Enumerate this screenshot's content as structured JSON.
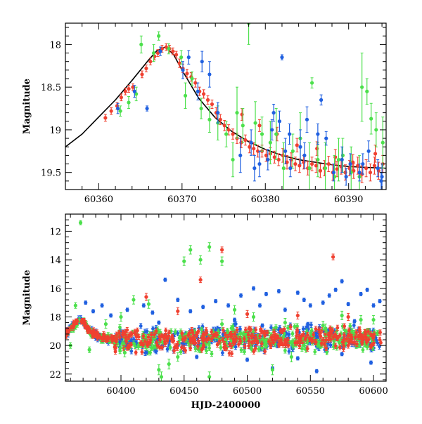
{
  "chart_data": [
    {
      "type": "scatter",
      "panel": "top",
      "title": "",
      "xlabel": "",
      "ylabel": "Magnitude",
      "xlim": [
        60356,
        60394.5
      ],
      "ylim": [
        19.7,
        17.75
      ],
      "y_inverted": true,
      "grid": false,
      "x_ticks": [
        60360,
        60370,
        60380,
        60390
      ],
      "y_ticks": [
        18,
        18.5,
        19,
        19.5
      ],
      "y_tick_labels": [
        "18",
        "18.5",
        "19",
        "19.5"
      ],
      "colors": {
        "red": "#f04030",
        "green": "#4ce04c",
        "blue": "#2060e0",
        "model": "#000000"
      },
      "model_curve": {
        "x": [
          60356,
          60358,
          60360,
          60362,
          60364,
          60366,
          60367,
          60368,
          60369,
          60370,
          60372,
          60374,
          60376,
          60378,
          60380,
          60382,
          60384,
          60386,
          60388,
          60390,
          60392,
          60394.5
        ],
        "y": [
          19.2,
          19.05,
          18.85,
          18.65,
          18.42,
          18.18,
          18.07,
          18.03,
          18.12,
          18.3,
          18.63,
          18.86,
          19.02,
          19.14,
          19.23,
          19.3,
          19.35,
          19.38,
          19.41,
          19.43,
          19.44,
          19.45
        ]
      },
      "series": [
        {
          "color": "red",
          "x": [
            60360.8,
            60361.5,
            60362.2,
            60362.7,
            60363.2,
            60363.6,
            60364.1,
            60365.2,
            60365.7,
            60366.2,
            60366.7,
            60367.1,
            60367.6,
            60368.1,
            60368.5,
            60368.9,
            60369.3,
            60369.7,
            60370.1,
            60370.6,
            60371.1,
            60371.6,
            60372.1,
            60372.6,
            60373.1,
            60373.6,
            60374.1,
            60374.6,
            60375.1,
            60375.6,
            60376.1,
            60376.6,
            60377.1,
            60377.6,
            60378.1,
            60378.6,
            60379.1,
            60379.6,
            60380.1,
            60380.6,
            60381.1,
            60381.6,
            60382.1,
            60382.6,
            60383.1,
            60383.6,
            60384.1,
            60384.6,
            60385.1,
            60385.6,
            60386.1,
            60386.6,
            60387.1,
            60387.6,
            60388.1,
            60388.6,
            60389.1,
            60389.6,
            60390.1,
            60390.6,
            60391.1,
            60391.6,
            60392.1,
            60392.6,
            60393.1,
            60393.6,
            60394.1,
            60377.2,
            60379.3,
            60381.4,
            60383.8,
            60386.2,
            60388.4,
            60390.5,
            60393.2
          ],
          "y": [
            18.86,
            18.78,
            18.72,
            18.62,
            18.55,
            18.52,
            18.5,
            18.35,
            18.28,
            18.2,
            18.14,
            18.1,
            18.05,
            18.03,
            18.05,
            18.08,
            18.12,
            18.22,
            18.28,
            18.34,
            18.38,
            18.45,
            18.55,
            18.58,
            18.65,
            18.7,
            18.8,
            18.88,
            18.95,
            19.0,
            19.05,
            19.1,
            19.15,
            19.12,
            19.2,
            19.22,
            19.25,
            19.25,
            19.3,
            19.28,
            19.32,
            19.35,
            19.3,
            19.38,
            19.35,
            19.4,
            19.42,
            19.38,
            19.45,
            19.4,
            19.42,
            19.48,
            19.45,
            19.4,
            19.5,
            19.46,
            19.43,
            19.5,
            19.45,
            19.48,
            19.42,
            19.52,
            19.45,
            19.5,
            19.42,
            19.48,
            19.4,
            18.82,
            18.95,
            19.05,
            19.18,
            19.22,
            19.32,
            19.38,
            19.28
          ],
          "err": [
            0.04,
            0.04,
            0.04,
            0.04,
            0.04,
            0.04,
            0.04,
            0.04,
            0.04,
            0.04,
            0.04,
            0.04,
            0.04,
            0.04,
            0.04,
            0.04,
            0.04,
            0.05,
            0.05,
            0.05,
            0.05,
            0.05,
            0.05,
            0.05,
            0.05,
            0.05,
            0.06,
            0.06,
            0.06,
            0.06,
            0.06,
            0.06,
            0.06,
            0.06,
            0.07,
            0.07,
            0.07,
            0.07,
            0.07,
            0.07,
            0.07,
            0.07,
            0.08,
            0.08,
            0.08,
            0.08,
            0.08,
            0.08,
            0.08,
            0.08,
            0.08,
            0.08,
            0.09,
            0.09,
            0.09,
            0.09,
            0.09,
            0.09,
            0.09,
            0.09,
            0.1,
            0.1,
            0.1,
            0.1,
            0.1,
            0.1,
            0.1,
            0.07,
            0.07,
            0.08,
            0.08,
            0.08,
            0.09,
            0.09,
            0.1
          ]
        },
        {
          "color": "green",
          "x": [
            60362.6,
            60363.6,
            60364.5,
            60365.1,
            60366.6,
            60367.2,
            60368.4,
            60369.9,
            60370.4,
            60371.2,
            60372.3,
            60373.3,
            60374.3,
            60375.3,
            60376.1,
            60376.6,
            60377.3,
            60378.0,
            60378.8,
            60379.6,
            60380.6,
            60381.3,
            60382.2,
            60383.3,
            60384.2,
            60385.3,
            60386.3,
            60387.2,
            60388.3,
            60389.3,
            60390.3,
            60391.3,
            60392.2,
            60392.7,
            60393.3,
            60394.1,
            60385.6,
            60388.8,
            60391.6
          ],
          "y": [
            18.78,
            18.68,
            18.58,
            18.0,
            18.1,
            17.9,
            18.05,
            18.15,
            18.6,
            18.4,
            18.75,
            18.88,
            18.92,
            19.05,
            19.35,
            18.8,
            18.95,
            17.75,
            18.92,
            19.05,
            19.15,
            19.05,
            19.45,
            19.25,
            19.1,
            19.45,
            19.35,
            19.45,
            19.55,
            19.3,
            19.5,
            19.55,
            18.55,
            18.87,
            19.0,
            19.15,
            18.45,
            19.35,
            18.5
          ],
          "err": [
            0.06,
            0.07,
            0.08,
            0.1,
            0.1,
            0.05,
            0.06,
            0.08,
            0.15,
            0.08,
            0.12,
            0.15,
            0.2,
            0.15,
            0.2,
            0.3,
            0.2,
            0.25,
            0.25,
            0.2,
            0.25,
            0.3,
            0.3,
            0.2,
            0.3,
            0.3,
            0.2,
            0.3,
            0.25,
            0.2,
            0.3,
            0.25,
            0.15,
            0.18,
            0.2,
            0.3,
            0.06,
            0.25,
            0.4
          ]
        },
        {
          "color": "blue",
          "x": [
            60362.3,
            60364.3,
            60365.8,
            60367.4,
            60370.1,
            60370.8,
            60371.9,
            60372.4,
            60373.3,
            60374.3,
            60377.0,
            60378.3,
            60379.3,
            60380.3,
            60381.0,
            60381.7,
            60382.0,
            60382.4,
            60383.0,
            60384.2,
            60385.0,
            60386.3,
            60387.3,
            60388.2,
            60389.2,
            60390.2,
            60391.3,
            60392.4,
            60393.5,
            60394.0,
            60378.7,
            60380.8,
            60382.9,
            60384.7,
            60386.7,
            60389.7,
            60391.7,
            60393.9
          ],
          "y": [
            18.75,
            18.55,
            18.75,
            18.08,
            18.3,
            18.15,
            18.55,
            18.2,
            18.35,
            18.8,
            19.3,
            19.15,
            19.4,
            19.35,
            18.8,
            18.9,
            18.15,
            19.25,
            19.45,
            19.2,
            18.88,
            19.05,
            19.1,
            19.5,
            19.35,
            19.4,
            19.5,
            19.25,
            19.45,
            19.55,
            19.45,
            19.0,
            19.05,
            19.3,
            18.65,
            19.55,
            19.4,
            19.6
          ],
          "err": [
            0.06,
            0.07,
            0.03,
            0.05,
            0.1,
            0.08,
            0.1,
            0.12,
            0.15,
            0.12,
            0.2,
            0.15,
            0.15,
            0.12,
            0.1,
            0.12,
            0.03,
            0.15,
            0.1,
            0.2,
            0.15,
            0.12,
            0.08,
            0.1,
            0.15,
            0.12,
            0.1,
            0.12,
            0.1,
            0.15,
            0.15,
            0.12,
            0.12,
            0.15,
            0.06,
            0.1,
            0.12,
            0.1
          ]
        }
      ]
    },
    {
      "type": "scatter",
      "panel": "bottom",
      "title": "",
      "xlabel": "HJD-2400000",
      "ylabel": "Magnitude",
      "xlim": [
        60356,
        60610
      ],
      "ylim": [
        22.5,
        10.8
      ],
      "y_inverted": true,
      "grid": false,
      "x_ticks": [
        60400,
        60450,
        60500,
        60550,
        60600
      ],
      "y_ticks": [
        12,
        14,
        16,
        18,
        20,
        22
      ],
      "band": {
        "x": [
          60356,
          60362,
          60368,
          60372,
          60376,
          60380,
          60385,
          60390,
          60400,
          60420,
          60440,
          60460,
          60480,
          60500,
          60520,
          60540,
          60560,
          60580,
          60600,
          60606
        ],
        "y": [
          19.2,
          18.7,
          18.1,
          18.6,
          19.0,
          19.3,
          19.45,
          19.55,
          19.6,
          19.6,
          19.6,
          19.55,
          19.55,
          19.5,
          19.55,
          19.5,
          19.55,
          19.5,
          19.5,
          19.5
        ],
        "spread": 0.8,
        "points_per_series": 380
      },
      "series": [
        {
          "color": "blue",
          "x": [
            60372,
            60378,
            60385,
            60392,
            60405,
            60418,
            60425,
            60435,
            60445,
            60455,
            60465,
            60475,
            60485,
            60495,
            60505,
            60510,
            60515,
            60525,
            60530,
            60540,
            60545,
            60550,
            60560,
            60565,
            60570,
            60575,
            60580,
            60590,
            60595,
            60600,
            60605,
            60420,
            60460,
            60500,
            60520,
            60540,
            60555,
            60575,
            60598,
            60430,
            60490,
            60512,
            60548,
            60585
          ],
          "y": [
            17.0,
            17.6,
            17.2,
            17.9,
            17.5,
            17.2,
            17.7,
            15.4,
            16.8,
            17.6,
            17.3,
            16.9,
            17.2,
            16.5,
            16.0,
            17.2,
            16.4,
            16.2,
            17.5,
            16.3,
            16.8,
            17.2,
            17.0,
            16.5,
            16.1,
            15.5,
            17.1,
            16.4,
            16.1,
            17.2,
            16.9,
            20.5,
            20.8,
            21.0,
            21.6,
            20.9,
            21.8,
            20.6,
            21.2,
            18.4,
            18.2,
            18.6,
            18.5,
            18.3
          ]
        },
        {
          "color": "green",
          "x": [
            60360,
            60364,
            60368,
            60375,
            60388,
            60400,
            60410,
            60422,
            60430,
            60438,
            60445,
            60455,
            60463,
            60470,
            60480,
            60490,
            60505,
            60520,
            60535,
            60545,
            60562,
            60575,
            60590,
            60432,
            60470,
            60450,
            60480,
            60530,
            60560,
            60600,
            60403
          ],
          "y": [
            20.0,
            17.2,
            11.4,
            20.3,
            18.5,
            18.0,
            16.8,
            17.1,
            21.7,
            21.3,
            20.8,
            13.3,
            14.0,
            13.1,
            18.5,
            17.5,
            18.0,
            21.7,
            20.8,
            20.0,
            18.8,
            17.9,
            18.2,
            22.2,
            22.2,
            14.1,
            14.1,
            18.4,
            18.6,
            18.2,
            20.5
          ],
          "err": [
            0.2,
            0.2,
            0.15,
            0.2,
            0.3,
            0.3,
            0.3,
            0.3,
            0.35,
            0.35,
            0.3,
            0.3,
            0.3,
            0.3,
            0.3,
            0.3,
            0.3,
            0.35,
            0.35,
            0.3,
            0.3,
            0.3,
            0.3,
            0.35,
            0.35,
            0.3,
            0.3,
            0.3,
            0.3,
            0.3,
            0.3
          ]
        },
        {
          "color": "red",
          "x": [
            60420,
            60445,
            60463,
            60480,
            60568,
            60500,
            60540,
            60580
          ],
          "y": [
            16.6,
            17.6,
            15.4,
            13.3,
            13.8,
            17.8,
            17.9,
            18.0
          ],
          "err": [
            0.25,
            0.25,
            0.2,
            0.2,
            0.2,
            0.25,
            0.25,
            0.25
          ]
        }
      ]
    }
  ]
}
